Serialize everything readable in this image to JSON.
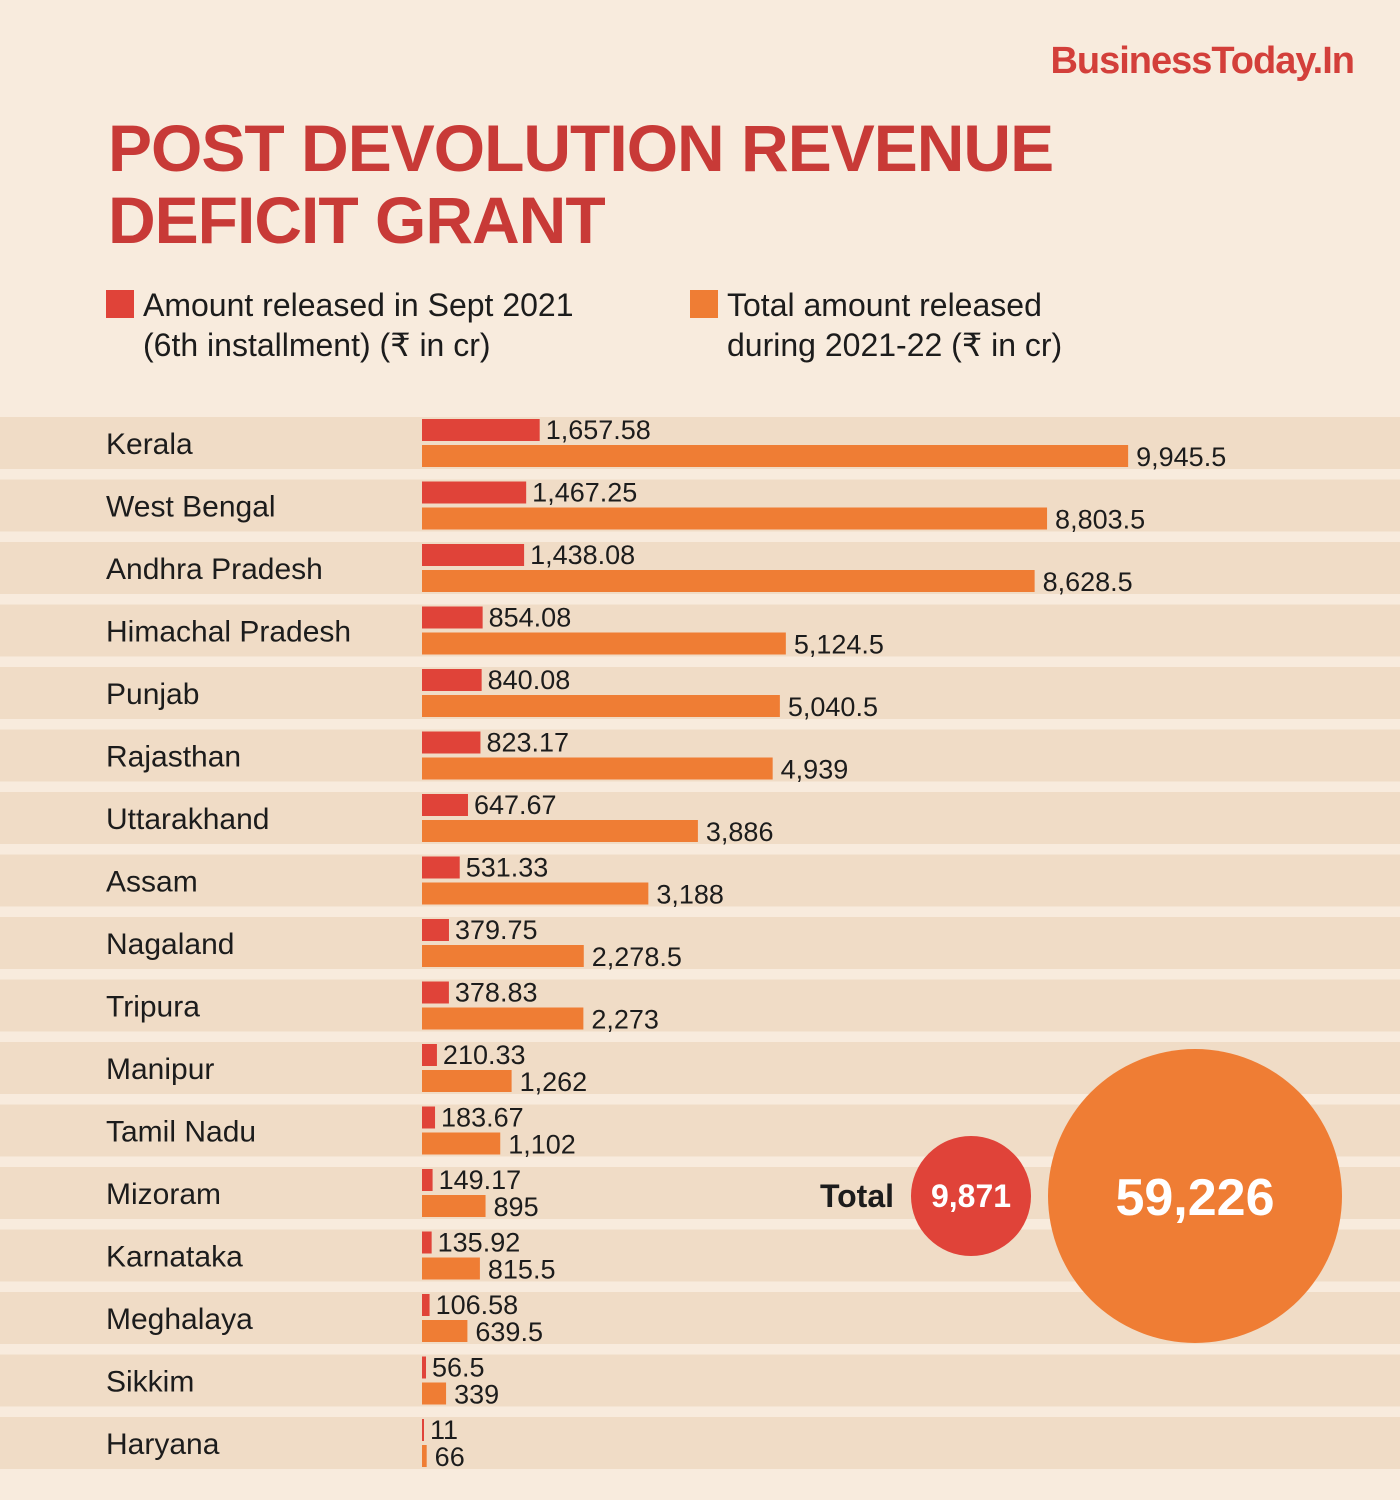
{
  "brand": "BusinessToday.In",
  "chart_data": {
    "type": "bar",
    "title_line1": "POST DEVOLUTION REVENUE",
    "title_line2": "DEFICIT GRANT",
    "categories": [
      "Kerala",
      "West Bengal",
      "Andhra Pradesh",
      "Himachal Pradesh",
      "Punjab",
      "Rajasthan",
      "Uttarakhand",
      "Assam",
      "Nagaland",
      "Tripura",
      "Manipur",
      "Tamil Nadu",
      "Mizoram",
      "Karnataka",
      "Meghalaya",
      "Sikkim",
      "Haryana"
    ],
    "series": [
      {
        "name": "Amount released in Sept 2021 (6th installment) (₹ in cr)",
        "legend_line1": "Amount released in Sept 2021",
        "legend_line2": "(6th installment) (₹ in cr)",
        "color": "#e04339",
        "values": [
          1657.58,
          1467.25,
          1438.08,
          854.08,
          840.08,
          823.17,
          647.67,
          531.33,
          379.75,
          378.83,
          210.33,
          183.67,
          149.17,
          135.92,
          106.58,
          56.5,
          11
        ],
        "labels": [
          "1,657.58",
          "1,467.25",
          "1,438.08",
          "854.08",
          "840.08",
          "823.17",
          "647.67",
          "531.33",
          "379.75",
          "378.83",
          "210.33",
          "183.67",
          "149.17",
          "135.92",
          "106.58",
          "56.5",
          "11"
        ]
      },
      {
        "name": "Total amount released during 2021-22 (₹ in cr)",
        "legend_line1": "Total amount released",
        "legend_line2": "during 2021-22 (₹ in cr)",
        "color": "#ef7d34",
        "values": [
          9945.5,
          8803.5,
          8628.5,
          5124.5,
          5040.5,
          4939,
          3886,
          3188,
          2278.5,
          2273,
          1262,
          1102,
          895,
          815.5,
          639.5,
          339,
          66
        ],
        "labels": [
          "9,945.5",
          "8,803.5",
          "8,628.5",
          "5,124.5",
          "5,040.5",
          "4,939",
          "3,886",
          "3,188",
          "2,278.5",
          "2,273",
          "1,262",
          "1,102",
          "895",
          "815.5",
          "639.5",
          "339",
          "66"
        ]
      }
    ],
    "total": {
      "label": "Total",
      "sept_2021": 9871,
      "sept_2021_label": "9,871",
      "fy_2021_22": 59226,
      "fy_2021_22_label": "59,226"
    },
    "xlim": [
      0,
      10000
    ],
    "grid": false
  },
  "colors": {
    "background": "#f8ebdd",
    "band": "#f0dcc6",
    "title": "#c83a37"
  }
}
